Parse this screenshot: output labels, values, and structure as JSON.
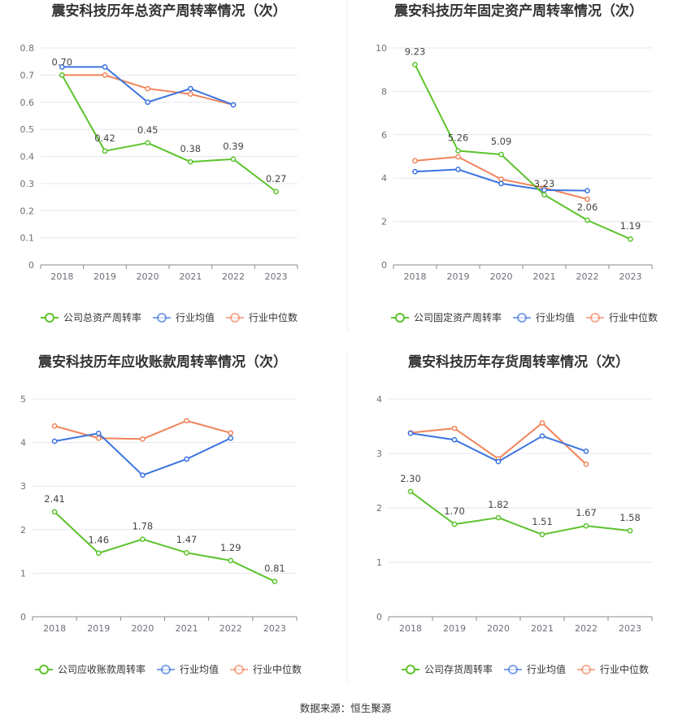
{
  "source": "数据来源：恒生聚源",
  "colors": {
    "company": "#5cc32c",
    "avg": "#3b73e0",
    "median": "#f0845a",
    "grid": "#e4e7f0",
    "axis": "#8a8a8a"
  },
  "chart_data": [
    {
      "type": "line",
      "title": "震安科技历年总资产周转率情况（次）",
      "categories": [
        "2018",
        "2019",
        "2020",
        "2021",
        "2022",
        "2023"
      ],
      "ylim": [
        0,
        0.8
      ],
      "yticks": [
        "0",
        "0.1",
        "0.2",
        "0.3",
        "0.4",
        "0.5",
        "0.6",
        "0.7",
        "0.8"
      ],
      "series": [
        {
          "name": "公司总资产周转率",
          "values": [
            0.7,
            0.42,
            0.45,
            0.38,
            0.39,
            0.27
          ],
          "labels": [
            "0.70",
            "0.42",
            "0.45",
            "0.38",
            "0.39",
            "0.27"
          ]
        },
        {
          "name": "行业均值",
          "values": [
            0.73,
            0.73,
            0.6,
            0.65,
            0.59,
            null
          ]
        },
        {
          "name": "行业中位数",
          "values": [
            0.7,
            0.7,
            0.65,
            0.63,
            0.59,
            null
          ]
        }
      ]
    },
    {
      "type": "line",
      "title": "震安科技历年固定资产周转率情况（次）",
      "categories": [
        "2018",
        "2019",
        "2020",
        "2021",
        "2022",
        "2023"
      ],
      "ylim": [
        0,
        10
      ],
      "yticks": [
        "0",
        "2",
        "4",
        "6",
        "8",
        "10"
      ],
      "series": [
        {
          "name": "公司固定资产周转率",
          "values": [
            9.23,
            5.26,
            5.09,
            3.23,
            2.06,
            1.19
          ],
          "labels": [
            "9.23",
            "5.26",
            "5.09",
            "3.23",
            "2.06",
            "1.19"
          ]
        },
        {
          "name": "行业均值",
          "values": [
            4.3,
            4.4,
            3.75,
            3.45,
            3.42,
            null
          ]
        },
        {
          "name": "行业中位数",
          "values": [
            4.8,
            4.98,
            3.95,
            3.55,
            3.03,
            null
          ]
        }
      ]
    },
    {
      "type": "line",
      "title": "震安科技历年应收账款周转率情况（次）",
      "categories": [
        "2018",
        "2019",
        "2020",
        "2021",
        "2022",
        "2023"
      ],
      "ylim": [
        0,
        5
      ],
      "yticks": [
        "0",
        "1",
        "2",
        "3",
        "4",
        "5"
      ],
      "series": [
        {
          "name": "公司应收账款周转率",
          "values": [
            2.41,
            1.46,
            1.78,
            1.47,
            1.29,
            0.81
          ],
          "labels": [
            "2.41",
            "1.46",
            "1.78",
            "1.47",
            "1.29",
            "0.81"
          ]
        },
        {
          "name": "行业均值",
          "values": [
            4.03,
            4.21,
            3.25,
            3.62,
            4.1,
            null
          ]
        },
        {
          "name": "行业中位数",
          "values": [
            4.38,
            4.1,
            4.08,
            4.5,
            4.22,
            null
          ]
        }
      ]
    },
    {
      "type": "line",
      "title": "震安科技历年存货周转率情况（次）",
      "categories": [
        "2018",
        "2019",
        "2020",
        "2021",
        "2022",
        "2023"
      ],
      "ylim": [
        0,
        4
      ],
      "yticks": [
        "0",
        "1",
        "2",
        "3",
        "4"
      ],
      "series": [
        {
          "name": "公司存货周转率",
          "values": [
            2.3,
            1.7,
            1.82,
            1.51,
            1.67,
            1.58
          ],
          "labels": [
            "2.30",
            "1.70",
            "1.82",
            "1.51",
            "1.67",
            "1.58"
          ]
        },
        {
          "name": "行业均值",
          "values": [
            3.37,
            3.25,
            2.85,
            3.32,
            3.04,
            null
          ]
        },
        {
          "name": "行业中位数",
          "values": [
            3.38,
            3.46,
            2.9,
            3.56,
            2.8,
            null
          ]
        }
      ]
    }
  ]
}
